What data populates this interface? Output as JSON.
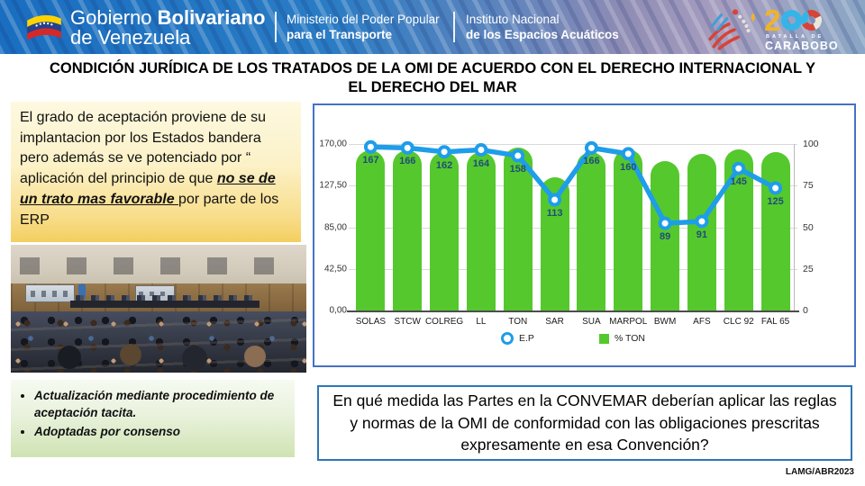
{
  "header": {
    "brand": {
      "word1": "Gobierno ",
      "word2": "Bolivariano",
      "line2": "de Venezuela"
    },
    "ministry": {
      "line1": "Ministerio del Poder Popular",
      "line2": "para el Transporte"
    },
    "institute": {
      "line1": "Instituto Nacional",
      "line2": "de los Espacios Acuáticos"
    },
    "carabobo": {
      "number_2": "2",
      "label_small": "BATALLA DE",
      "label_big": "CARABOBO"
    },
    "colors": {
      "header_blue": "#1a6ec0",
      "carabobo_yellow": "#f0b429",
      "carabobo_red": "#d84337",
      "carabobo_blue": "#35b4e8"
    }
  },
  "title": {
    "text": "CONDICIÓN JURÍDICA DE LOS TRATADOS DE LA OMI DE ACUERDO CON EL DERECHO INTERNACIONAL Y EL DERECHO DEL MAR"
  },
  "left_note": {
    "pre": "El grado de aceptación proviene de su implantacion por los Estados bandera pero además se ve potenciado por “ aplicación del principio de que ",
    "emphasis": "no se de un trato mas favorable ",
    "post": "por parte de los ERP"
  },
  "bullets": {
    "items": [
      "Actualización mediante procedimiento de aceptación tacita.",
      "Adoptadas por consenso"
    ]
  },
  "question": {
    "text": "En qué medida las Partes en la CONVEMAR deberían aplicar las reglas y normas de la OMI de conformidad con las obligaciones prescritas expresamente en esa Convención?"
  },
  "footer": {
    "credit": "LAMG/ABR2023"
  },
  "chart_data": {
    "type": "bar",
    "subtype": "bar+line combo",
    "categories": [
      "SOLAS",
      "STCW",
      "COLREG",
      "LL",
      "TON",
      "SAR",
      "SUA",
      "MARPOL",
      "BWM",
      "AFS",
      "CLC 92",
      "FAL 65"
    ],
    "series": [
      {
        "name": "E.P",
        "type": "line",
        "axis": "left",
        "color": "#1e9de9",
        "label_color": "#1F4E79",
        "values": [
          167,
          166,
          162,
          164,
          158,
          113,
          166,
          160,
          89,
          91,
          145,
          125
        ]
      },
      {
        "name": "% TON",
        "type": "bar",
        "axis": "right",
        "color": "#55c82e",
        "values": [
          96,
          96,
          95,
          95,
          98,
          80,
          95,
          97,
          90,
          94,
          97,
          95
        ]
      }
    ],
    "left_axis": {
      "ticks": [
        "170,00",
        "127,50",
        "85,00",
        "42,50",
        "0,00"
      ],
      "tick_values": [
        170,
        127.5,
        85,
        42.5,
        0
      ],
      "min": 0,
      "max": 170
    },
    "right_axis": {
      "ticks": [
        "100",
        "75",
        "50",
        "25",
        "0"
      ],
      "tick_values": [
        100,
        75,
        50,
        25,
        0
      ],
      "min": 0,
      "max": 100
    },
    "grid": true,
    "legend_position": "bottom",
    "border_color": "#4472c4"
  }
}
